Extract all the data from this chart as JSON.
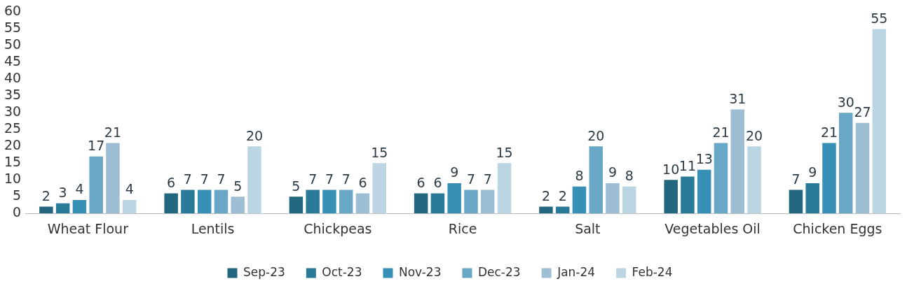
{
  "chart_data": {
    "type": "bar",
    "categories": [
      "Wheat Flour",
      "Lentils",
      "Chickpeas",
      "Rice",
      "Salt",
      "Vegetables Oil",
      "Chicken Eggs"
    ],
    "series": [
      {
        "name": "Sep-23",
        "color": "#226680",
        "values": [
          2,
          6,
          5,
          6,
          2,
          10,
          7
        ]
      },
      {
        "name": "Oct-23",
        "color": "#2a7a99",
        "values": [
          3,
          7,
          7,
          6,
          2,
          11,
          9
        ]
      },
      {
        "name": "Nov-23",
        "color": "#3790b5",
        "values": [
          4,
          7,
          7,
          9,
          8,
          13,
          21
        ]
      },
      {
        "name": "Dec-23",
        "color": "#68a7c6",
        "values": [
          17,
          7,
          7,
          7,
          20,
          21,
          30
        ]
      },
      {
        "name": "Jan-24",
        "color": "#9ebfd3",
        "values": [
          21,
          5,
          6,
          7,
          9,
          31,
          27
        ]
      },
      {
        "name": "Feb-24",
        "color": "#bcd5e2",
        "values": [
          4,
          20,
          15,
          15,
          8,
          20,
          55
        ]
      }
    ],
    "ylim": [
      0,
      60
    ],
    "yticks": [
      0,
      5,
      10,
      15,
      20,
      25,
      30,
      35,
      40,
      45,
      50,
      55,
      60
    ],
    "grid": false,
    "legend": "bottom",
    "data_labels": true
  }
}
